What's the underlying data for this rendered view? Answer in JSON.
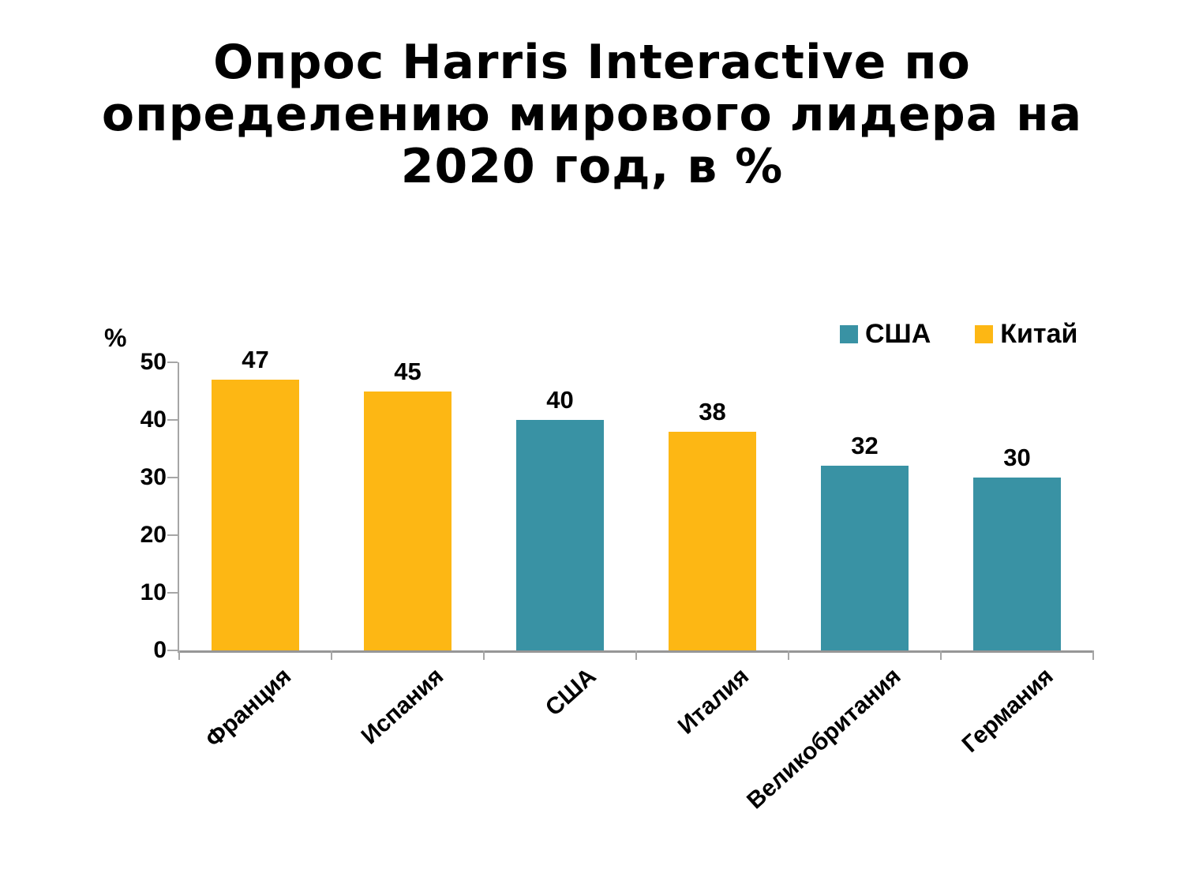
{
  "title": "Опрос Harris Interactive по\nопределению мирового лидера на\n2020 год, в %",
  "ylabel": "%",
  "legend": [
    {
      "label": "США",
      "color": "#3992A4"
    },
    {
      "label": "Китай",
      "color": "#FDB714"
    }
  ],
  "chart_data": {
    "type": "bar",
    "title": "Опрос Harris Interactive по определению мирового лидера на 2020 год, в %",
    "categories": [
      "Франция",
      "Испания",
      "США",
      "Италия",
      "Великобритания",
      "Германия"
    ],
    "values": [
      47,
      45,
      40,
      38,
      32,
      30
    ],
    "series_by_bar": [
      "Китай",
      "Китай",
      "США",
      "Китай",
      "США",
      "США"
    ],
    "colors": {
      "США": "#3992A4",
      "Китай": "#FDB714"
    },
    "legend_labels": [
      "США",
      "Китай"
    ],
    "xlabel": "",
    "ylabel": "%",
    "ylim": [
      0,
      50
    ],
    "yticks": [
      0,
      10,
      20,
      30,
      40,
      50
    ],
    "grid": false,
    "bar_value_labels": true,
    "legend_position": "top-right",
    "x_label_rotation_deg": -42
  }
}
